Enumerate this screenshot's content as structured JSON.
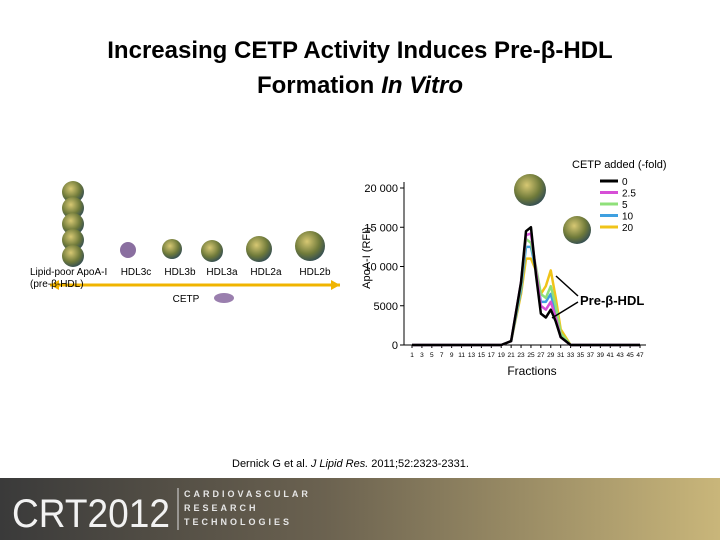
{
  "slide": {
    "title_line1": "Increasing CETP Activity Induces Pre-β-HDL",
    "title_line2": "Formation",
    "title_line2_italic": "In Vitro",
    "particles": [
      "HDL3c",
      "HDL3b",
      "HDL3a",
      "HDL2a",
      "HDL2b"
    ],
    "lipid_poor_line1": "Lipid-poor ApoA-I",
    "lipid_poor_line2": "(pre-β-HDL)",
    "cetp": "CETP",
    "citation_before": "Dernick G et al.",
    "citation_journal": "J Lipid Res.",
    "citation_after": "2011;52:2323-2331.",
    "logo_main": "CRT2012",
    "logo_words": [
      "CARDIOVASCULAR",
      "RESEARCH",
      "TECHNOLOGIES"
    ]
  },
  "chart_data": {
    "type": "line",
    "x_label": "Fractions",
    "y_label": "ApoA-I (RFI)",
    "legend_title": "CETP added (-fold)",
    "annotation": "Pre-β-HDL",
    "x": [
      1,
      19,
      21,
      23,
      24,
      25,
      26,
      27,
      28,
      29,
      30,
      31,
      33,
      47
    ],
    "xlim": [
      1,
      47
    ],
    "xticks": [
      1,
      3,
      5,
      7,
      9,
      11,
      13,
      15,
      17,
      19,
      21,
      23,
      25,
      27,
      29,
      31,
      33,
      35,
      37,
      39,
      41,
      43,
      45,
      47
    ],
    "ylim": [
      0,
      20000
    ],
    "yticks": [
      0,
      5000,
      {
        "value": 10000,
        "label": "10 000"
      },
      {
        "value": 15000,
        "label": "15 000"
      },
      {
        "value": 20000,
        "label": "20 000"
      }
    ],
    "series": [
      {
        "name": "0",
        "color": "#000000",
        "values": [
          0,
          0,
          500,
          8000,
          14500,
          15000,
          9000,
          4000,
          3500,
          4500,
          3000,
          1000,
          0,
          0
        ]
      },
      {
        "name": "2.5",
        "color": "#d64fd6",
        "values": [
          0,
          0,
          500,
          8000,
          14000,
          14200,
          9500,
          5000,
          4500,
          5500,
          3500,
          1000,
          0,
          0
        ]
      },
      {
        "name": "5",
        "color": "#8fe07a",
        "values": [
          0,
          0,
          500,
          7500,
          13500,
          13000,
          10000,
          6500,
          6000,
          7500,
          5000,
          1500,
          0,
          0
        ]
      },
      {
        "name": "10",
        "color": "#3fa0e0",
        "values": [
          0,
          0,
          500,
          7000,
          12500,
          12500,
          9500,
          5500,
          5500,
          6500,
          4000,
          1200,
          0,
          0
        ]
      },
      {
        "name": "20",
        "color": "#f0c419",
        "values": [
          0,
          0,
          500,
          6500,
          11000,
          11000,
          9500,
          6500,
          7500,
          9500,
          6000,
          2000,
          0,
          0
        ]
      }
    ]
  }
}
